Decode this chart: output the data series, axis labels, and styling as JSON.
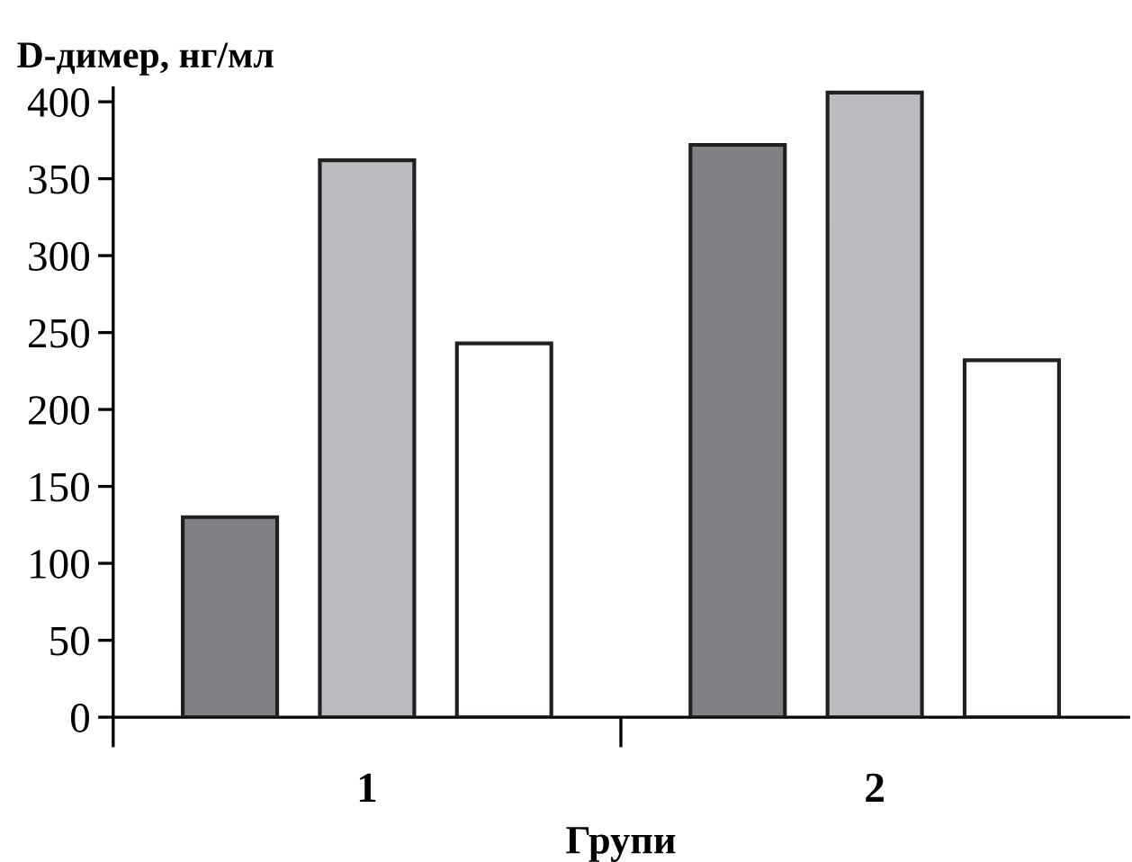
{
  "chart_data": {
    "type": "bar",
    "ylabel": "D-димер, нг/мл",
    "xlabel": "Групи",
    "categories": [
      "1",
      "2"
    ],
    "series": [
      {
        "color": "#808185",
        "values": [
          130,
          372
        ]
      },
      {
        "color": "#bbbcc0",
        "values": [
          362,
          406
        ]
      },
      {
        "color": "#ffffff",
        "values": [
          243,
          232
        ]
      }
    ],
    "ylim": [
      0,
      409
    ],
    "yticks": [
      0,
      50,
      100,
      150,
      200,
      250,
      300,
      350,
      400
    ],
    "grid": false,
    "legend": false
  }
}
